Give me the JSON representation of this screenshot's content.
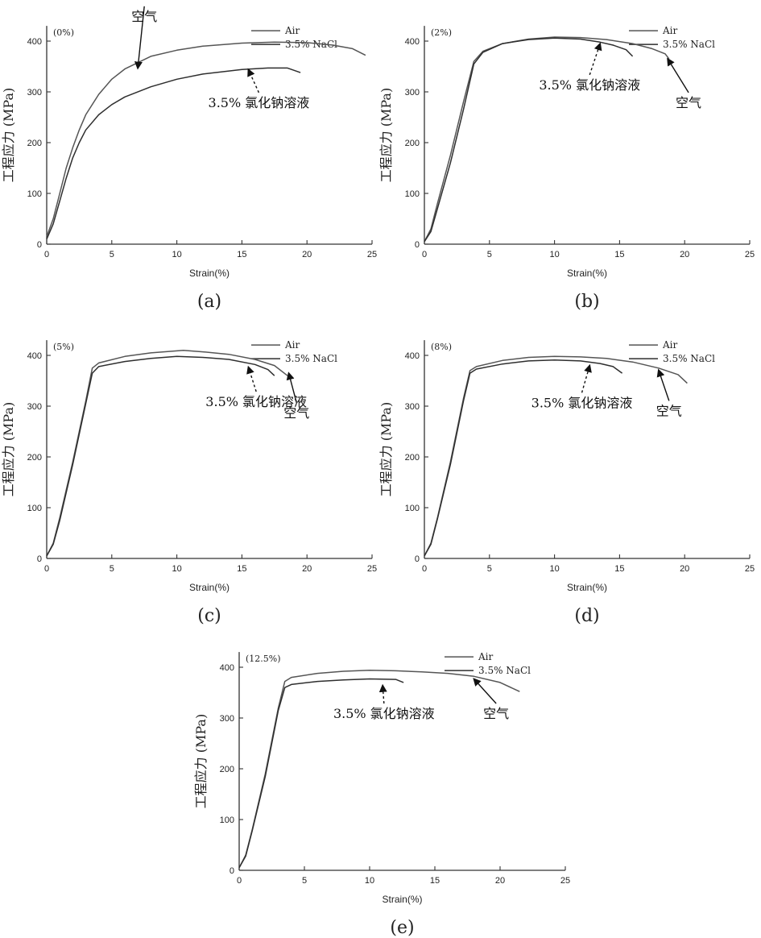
{
  "colors": {
    "air": "#555555",
    "nacl": "#2e2e2e",
    "axis": "#333333"
  },
  "chart_data": [
    {
      "type": "line",
      "panel_label": "(0%)",
      "caption": "(a)",
      "xlabel": "Strain(%)",
      "ylabel": "工程应力 (MPa)",
      "xlim": [
        0,
        25
      ],
      "ylim": [
        0,
        430
      ],
      "xticks": [
        0,
        5,
        10,
        15,
        20,
        25
      ],
      "yticks": [
        0,
        100,
        200,
        300,
        400
      ],
      "legend": [
        "Air",
        "3.5% NaCl"
      ],
      "series": [
        {
          "name": "Air",
          "points": [
            [
              0,
              15
            ],
            [
              0.5,
              50
            ],
            [
              1,
              100
            ],
            [
              1.5,
              150
            ],
            [
              2,
              190
            ],
            [
              2.5,
              225
            ],
            [
              3,
              255
            ],
            [
              4,
              295
            ],
            [
              5,
              325
            ],
            [
              6,
              345
            ],
            [
              8,
              370
            ],
            [
              10,
              382
            ],
            [
              12,
              390
            ],
            [
              15,
              396
            ],
            [
              17.5,
              398
            ],
            [
              20,
              397
            ],
            [
              22,
              392
            ],
            [
              23.5,
              385
            ],
            [
              24.5,
              372
            ]
          ]
        },
        {
          "name": "3.5% NaCl",
          "points": [
            [
              0,
              10
            ],
            [
              0.5,
              40
            ],
            [
              1,
              85
            ],
            [
              1.5,
              130
            ],
            [
              2,
              170
            ],
            [
              2.5,
              200
            ],
            [
              3,
              225
            ],
            [
              4,
              255
            ],
            [
              5,
              275
            ],
            [
              6,
              290
            ],
            [
              8,
              310
            ],
            [
              10,
              325
            ],
            [
              12,
              335
            ],
            [
              15,
              344
            ],
            [
              17,
              347
            ],
            [
              18.5,
              347
            ],
            [
              19.5,
              338
            ]
          ]
        }
      ],
      "annotations": [
        {
          "text": "空气",
          "target": [
            7,
            350
          ],
          "label_at": [
            7.5,
            440
          ],
          "style": "solid"
        },
        {
          "text": "3.5% 氯化钠溶液",
          "target": [
            15.5,
            347
          ],
          "label_at": [
            16.3,
            270
          ],
          "style": "dashed"
        }
      ]
    },
    {
      "type": "line",
      "panel_label": "(2%)",
      "caption": "(b)",
      "xlabel": "Strain(%)",
      "ylabel": "工程应力 (MPa)",
      "xlim": [
        0,
        25
      ],
      "ylim": [
        0,
        430
      ],
      "xticks": [
        0,
        5,
        10,
        15,
        20,
        25
      ],
      "yticks": [
        0,
        100,
        200,
        300,
        400
      ],
      "legend": [
        "Air",
        "3.5% NaCl"
      ],
      "series": [
        {
          "name": "Air",
          "points": [
            [
              0,
              5
            ],
            [
              0.5,
              30
            ],
            [
              1,
              80
            ],
            [
              2,
              175
            ],
            [
              3,
              280
            ],
            [
              3.8,
              360
            ],
            [
              4.5,
              380
            ],
            [
              6,
              395
            ],
            [
              8,
              404
            ],
            [
              10,
              408
            ],
            [
              12,
              407
            ],
            [
              14,
              403
            ],
            [
              16,
              395
            ],
            [
              17.5,
              385
            ],
            [
              18.5,
              375
            ],
            [
              18.8,
              365
            ]
          ]
        },
        {
          "name": "3.5% NaCl",
          "points": [
            [
              0,
              5
            ],
            [
              0.5,
              25
            ],
            [
              1,
              70
            ],
            [
              2,
              160
            ],
            [
              3,
              265
            ],
            [
              3.8,
              355
            ],
            [
              4.5,
              378
            ],
            [
              6,
              395
            ],
            [
              8,
              403
            ],
            [
              10,
              406
            ],
            [
              12,
              404
            ],
            [
              13.5,
              398
            ],
            [
              14.5,
              392
            ],
            [
              15.5,
              383
            ],
            [
              16,
              370
            ]
          ]
        }
      ],
      "annotations": [
        {
          "text": "3.5% 氯化钠溶液",
          "target": [
            13.5,
            398
          ],
          "label_at": [
            12.7,
            305
          ],
          "style": "dashed"
        },
        {
          "text": "空气",
          "target": [
            18.7,
            368
          ],
          "label_at": [
            20.3,
            270
          ],
          "style": "solid"
        }
      ]
    },
    {
      "type": "line",
      "panel_label": "(5%)",
      "caption": "(c)",
      "xlabel": "Strain(%)",
      "ylabel": "工程应力 (MPa)",
      "xlim": [
        0,
        25
      ],
      "ylim": [
        0,
        430
      ],
      "xticks": [
        0,
        5,
        10,
        15,
        20,
        25
      ],
      "yticks": [
        0,
        100,
        200,
        300,
        400
      ],
      "legend": [
        "Air",
        "3.5% NaCl"
      ],
      "series": [
        {
          "name": "Air",
          "points": [
            [
              0,
              5
            ],
            [
              0.5,
              30
            ],
            [
              1,
              80
            ],
            [
              2,
              190
            ],
            [
              3,
              310
            ],
            [
              3.5,
              375
            ],
            [
              4,
              385
            ],
            [
              6,
              398
            ],
            [
              8,
              405
            ],
            [
              10.5,
              410
            ],
            [
              12,
              407
            ],
            [
              14,
              402
            ],
            [
              16,
              392
            ],
            [
              17.5,
              380
            ],
            [
              18.5,
              360
            ]
          ]
        },
        {
          "name": "3.5% NaCl",
          "points": [
            [
              0,
              5
            ],
            [
              0.5,
              28
            ],
            [
              1,
              75
            ],
            [
              2,
              185
            ],
            [
              3,
              305
            ],
            [
              3.5,
              365
            ],
            [
              4,
              378
            ],
            [
              6,
              388
            ],
            [
              8,
              394
            ],
            [
              10,
              398
            ],
            [
              12,
              396
            ],
            [
              14,
              392
            ],
            [
              16,
              382
            ],
            [
              17,
              372
            ],
            [
              17.5,
              360
            ]
          ]
        }
      ],
      "annotations": [
        {
          "text": "3.5% 氯化钠溶液",
          "target": [
            15.5,
            380
          ],
          "label_at": [
            16.1,
            300
          ],
          "style": "dashed"
        },
        {
          "text": "空气",
          "target": [
            18.6,
            368
          ],
          "label_at": [
            19.2,
            278
          ],
          "style": "solid"
        }
      ]
    },
    {
      "type": "line",
      "panel_label": "(8%)",
      "caption": "(d)",
      "xlabel": "Strain(%)",
      "ylabel": "工程应力 (MPa)",
      "xlim": [
        0,
        25
      ],
      "ylim": [
        0,
        430
      ],
      "xticks": [
        0,
        5,
        10,
        15,
        20,
        25
      ],
      "yticks": [
        0,
        100,
        200,
        300,
        400
      ],
      "legend": [
        "Air",
        "3.5% NaCl"
      ],
      "series": [
        {
          "name": "Air",
          "points": [
            [
              0,
              5
            ],
            [
              0.5,
              30
            ],
            [
              1,
              80
            ],
            [
              2,
              190
            ],
            [
              3,
              315
            ],
            [
              3.5,
              370
            ],
            [
              4,
              378
            ],
            [
              6,
              390
            ],
            [
              8,
              396
            ],
            [
              10,
              398
            ],
            [
              12,
              397
            ],
            [
              14,
              394
            ],
            [
              16,
              387
            ],
            [
              18,
              375
            ],
            [
              19.5,
              362
            ],
            [
              20.2,
              345
            ]
          ]
        },
        {
          "name": "3.5% NaCl",
          "points": [
            [
              0,
              5
            ],
            [
              0.5,
              28
            ],
            [
              1,
              78
            ],
            [
              2,
              185
            ],
            [
              3,
              310
            ],
            [
              3.5,
              365
            ],
            [
              4,
              373
            ],
            [
              6,
              383
            ],
            [
              8,
              389
            ],
            [
              10,
              391
            ],
            [
              12,
              389
            ],
            [
              13.5,
              384
            ],
            [
              14.5,
              378
            ],
            [
              15.2,
              365
            ]
          ]
        }
      ],
      "annotations": [
        {
          "text": "3.5% 氯化钠溶液",
          "target": [
            12.7,
            383
          ],
          "label_at": [
            12.1,
            298
          ],
          "style": "dashed"
        },
        {
          "text": "空气",
          "target": [
            18,
            374
          ],
          "label_at": [
            18.8,
            282
          ],
          "style": "solid"
        }
      ]
    },
    {
      "type": "line",
      "panel_label": "(12.5%)",
      "caption": "(e)",
      "xlabel": "Strain(%)",
      "ylabel": "工程应力 (MPa)",
      "xlim": [
        0,
        25
      ],
      "ylim": [
        0,
        430
      ],
      "xticks": [
        0,
        5,
        10,
        15,
        20,
        25
      ],
      "yticks": [
        0,
        100,
        200,
        300,
        400
      ],
      "legend": [
        "Air",
        "3.5% NaCl"
      ],
      "series": [
        {
          "name": "Air",
          "points": [
            [
              0,
              5
            ],
            [
              0.5,
              30
            ],
            [
              1,
              80
            ],
            [
              2,
              190
            ],
            [
              3,
              320
            ],
            [
              3.5,
              372
            ],
            [
              4,
              380
            ],
            [
              6,
              388
            ],
            [
              8,
              392
            ],
            [
              10,
              394
            ],
            [
              12,
              393
            ],
            [
              14,
              391
            ],
            [
              16,
              388
            ],
            [
              18,
              382
            ],
            [
              20,
              370
            ],
            [
              21.5,
              352
            ]
          ]
        },
        {
          "name": "3.5% NaCl",
          "points": [
            [
              0,
              5
            ],
            [
              0.5,
              28
            ],
            [
              1,
              78
            ],
            [
              2,
              185
            ],
            [
              3,
              315
            ],
            [
              3.5,
              360
            ],
            [
              4,
              366
            ],
            [
              6,
              372
            ],
            [
              8,
              375
            ],
            [
              10,
              377
            ],
            [
              12,
              376
            ],
            [
              12.6,
              370
            ]
          ]
        }
      ],
      "annotations": [
        {
          "text": "3.5% 氯化钠溶液",
          "target": [
            11,
            367
          ],
          "label_at": [
            11.1,
            300
          ],
          "style": "dashed"
        },
        {
          "text": "空气",
          "target": [
            18,
            380
          ],
          "label_at": [
            19.7,
            300
          ],
          "style": "solid"
        }
      ]
    }
  ]
}
